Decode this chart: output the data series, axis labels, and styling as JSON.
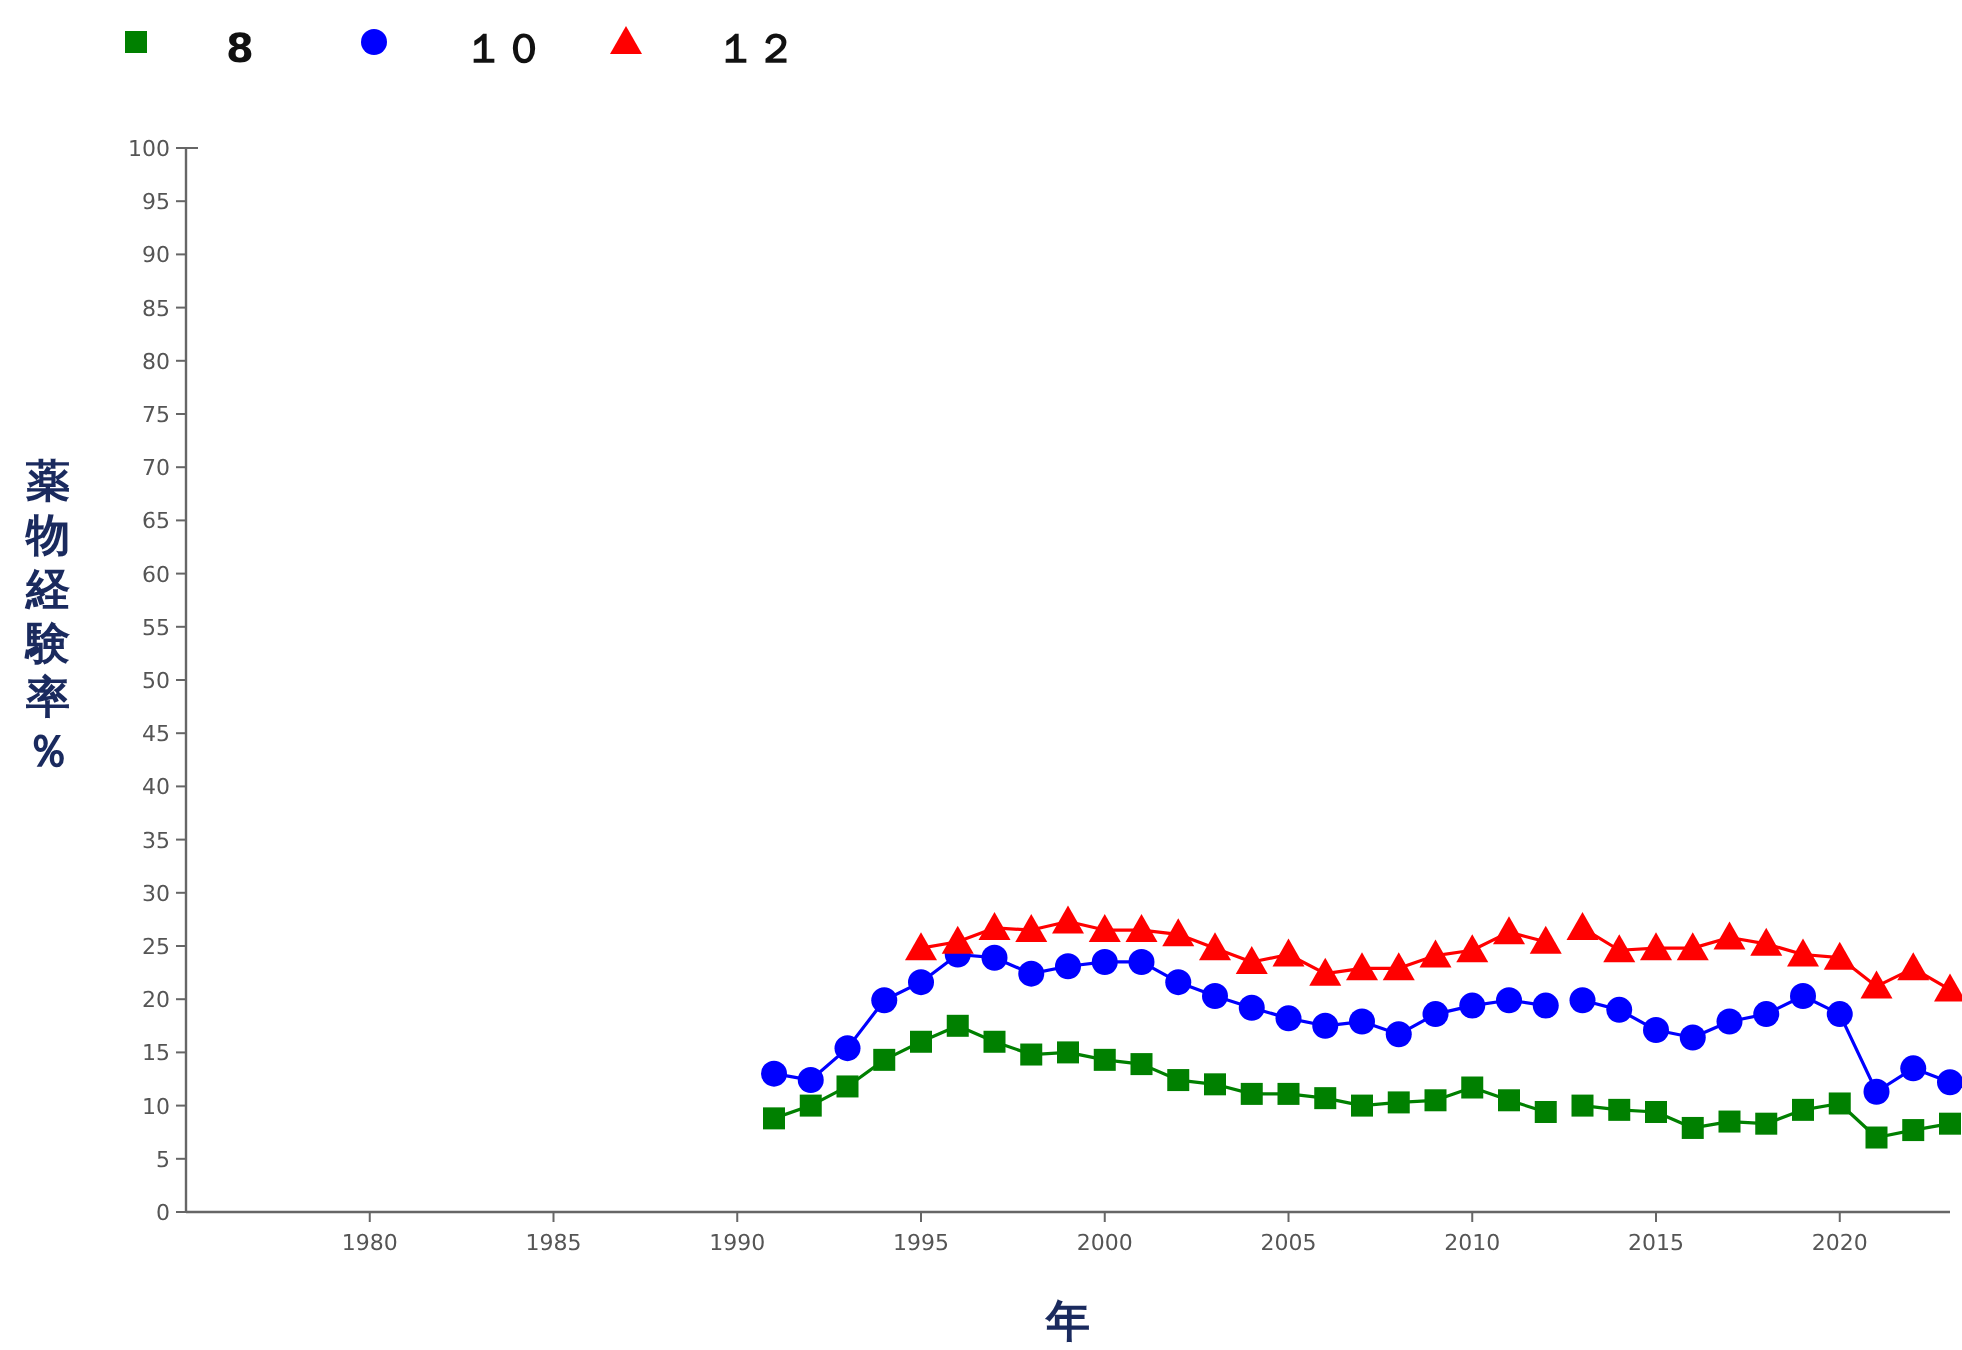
{
  "chart_data": {
    "type": "line",
    "xlabel": "年",
    "ylabel": "薬物経験率％",
    "xlim": [
      1975,
      2023
    ],
    "xticks": [
      1980,
      1985,
      1990,
      1995,
      2000,
      2005,
      2010,
      2015,
      2020
    ],
    "ylim": [
      0,
      100
    ],
    "yticks": [
      0,
      5,
      10,
      15,
      20,
      25,
      30,
      35,
      40,
      45,
      50,
      55,
      60,
      65,
      70,
      75,
      80,
      85,
      90,
      95,
      100
    ],
    "grid": false,
    "legend": "top left",
    "x": [
      1991,
      1992,
      1993,
      1994,
      1995,
      1996,
      1997,
      1998,
      1999,
      2000,
      2001,
      2002,
      2003,
      2004,
      2005,
      2006,
      2007,
      2008,
      2009,
      2010,
      2011,
      2012,
      2012.5,
      2013,
      2014,
      2015,
      2016,
      2017,
      2018,
      2019,
      2020,
      2021,
      2022,
      2023
    ],
    "series": [
      {
        "name": "8",
        "color": "#008000",
        "marker": "square",
        "values": [
          8.8,
          10.0,
          11.8,
          14.3,
          16.0,
          17.5,
          16.0,
          14.8,
          15.0,
          14.3,
          13.9,
          12.4,
          12.0,
          11.1,
          11.1,
          10.7,
          10.0,
          10.3,
          10.5,
          11.7,
          10.5,
          9.4,
          null,
          10.0,
          9.6,
          9.4,
          7.9,
          8.5,
          8.3,
          9.6,
          10.2,
          7.0,
          7.7,
          8.3
        ]
      },
      {
        "name": "１０",
        "color": "#0000ff",
        "marker": "circle",
        "values": [
          13.0,
          12.4,
          15.4,
          19.9,
          21.6,
          24.2,
          23.9,
          22.4,
          23.1,
          23.5,
          23.5,
          21.6,
          20.3,
          19.2,
          18.2,
          17.5,
          17.9,
          16.7,
          18.6,
          19.4,
          19.9,
          19.4,
          null,
          19.9,
          19.0,
          17.1,
          16.4,
          17.9,
          18.6,
          20.3,
          18.6,
          11.3,
          13.5,
          12.2
        ]
      },
      {
        "name": "１２",
        "color": "#ff0000",
        "marker": "triangle",
        "values": [
          null,
          null,
          null,
          null,
          24.8,
          25.4,
          26.7,
          26.5,
          27.3,
          26.5,
          26.5,
          26.1,
          24.8,
          23.5,
          24.2,
          22.4,
          22.9,
          22.9,
          24.1,
          24.6,
          26.3,
          25.4,
          null,
          26.7,
          24.6,
          24.8,
          24.8,
          25.8,
          25.2,
          24.2,
          23.9,
          21.2,
          22.9,
          20.9
        ]
      }
    ]
  }
}
